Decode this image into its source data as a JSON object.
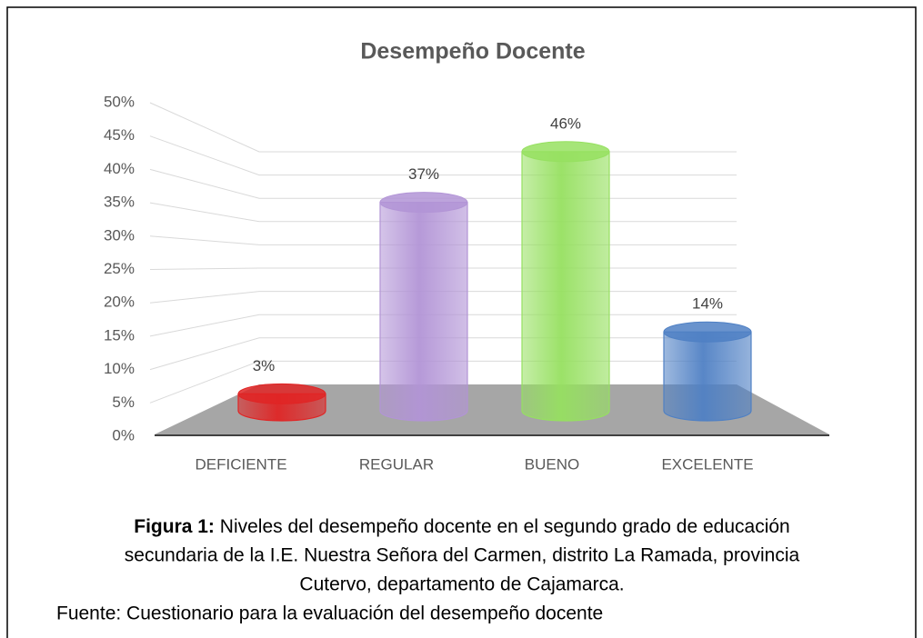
{
  "chart_data": {
    "type": "bar",
    "title": "Desempeño Docente",
    "categories": [
      "DEFICIENTE",
      "REGULAR",
      "BUENO",
      "EXCELENTE"
    ],
    "values": [
      3,
      37,
      46,
      14
    ],
    "value_labels": [
      "3%",
      "37%",
      "46%",
      "14%"
    ],
    "colors": [
      "#e02424",
      "#b294d6",
      "#96e060",
      "#4f80c4"
    ],
    "ylim": [
      0,
      50
    ],
    "yticks": [
      {
        "value": 0,
        "label": "0%"
      },
      {
        "value": 5,
        "label": "5%"
      },
      {
        "value": 10,
        "label": "10%"
      },
      {
        "value": 15,
        "label": "15%"
      },
      {
        "value": 20,
        "label": "20%"
      },
      {
        "value": 25,
        "label": "25%"
      },
      {
        "value": 30,
        "label": "30%"
      },
      {
        "value": 35,
        "label": "35%"
      },
      {
        "value": 40,
        "label": "40%"
      },
      {
        "value": 45,
        "label": "45%"
      },
      {
        "value": 50,
        "label": "50%"
      }
    ],
    "grid": true
  },
  "caption": {
    "label": "Figura 1:",
    "lines": [
      " Niveles del desempeño docente en el segundo grado de educación",
      "secundaria de la I.E. Nuestra Señora del Carmen, distrito La Ramada, provincia",
      "Cutervo, departamento de Cajamarca."
    ],
    "source": "Fuente: Cuestionario para la evaluación del desempeño docente"
  }
}
